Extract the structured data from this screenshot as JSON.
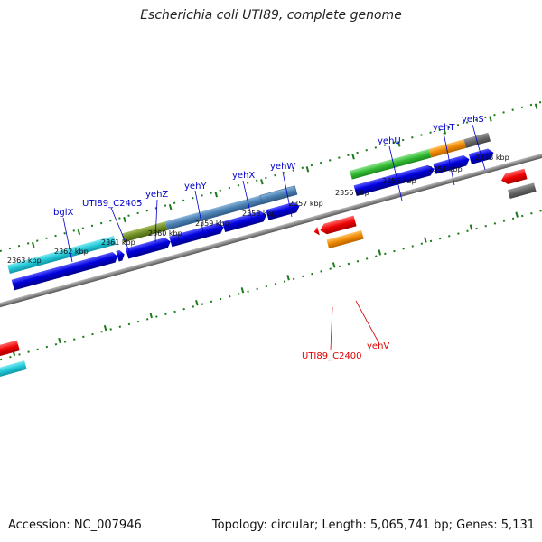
{
  "header": {
    "title": "Escherichia coli UTI89, complete genome"
  },
  "footer": {
    "accession": "Accession: NC_007946",
    "topology": "Topology: circular; Length: 5,065,741 bp; Genes: 5,131"
  },
  "ruler": {
    "upper_labels": [
      "2363 kbp",
      "2362 kbp",
      "2361 kbp",
      "2360 kbp",
      "2359 kbp",
      "2358 kbp",
      "2357 kbp",
      "2356 kbp",
      "2355 kbp",
      "2354 kbp",
      "2353 kbp"
    ]
  },
  "genes": {
    "forward_strand_labels": [
      "bglX",
      "UTI89_C2405",
      "yehZ",
      "yehY",
      "yehX",
      "yehW",
      "yehU",
      "yehT",
      "yehS"
    ],
    "reverse_strand_labels": [
      "UTI89_C2400",
      "yehV"
    ]
  },
  "colors": {
    "forward_label": "#0000cc",
    "reverse_label": "#dd0000",
    "ruler_ticks": "#1a7a1a",
    "backbone": "#888888",
    "cds": "#0000dd",
    "cyan_feature": "#22c8d8",
    "olive_feature": "#6e8c22",
    "steelblue_feature": "#4a7fb0",
    "green_feature": "#33bb33",
    "orange_feature": "#ee8800",
    "gray_feature": "#666666",
    "red_feature": "#ee0000"
  }
}
